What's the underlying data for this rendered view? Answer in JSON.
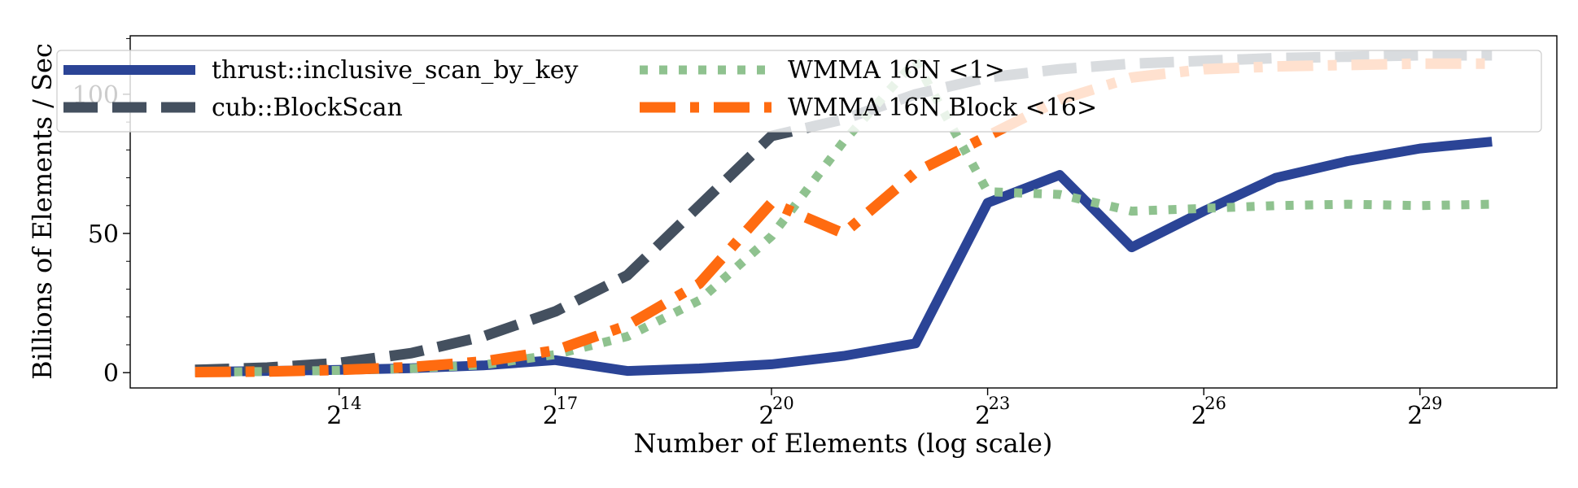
{
  "chart_data": {
    "type": "line",
    "xlabel": "Number of Elements (log scale)",
    "ylabel": "Billions of Elements / Sec",
    "x_scale": "log2",
    "x_tick_base": "2",
    "x_ticks": [
      14,
      17,
      20,
      23,
      26,
      29
    ],
    "y_ticks": [
      0,
      50,
      100
    ],
    "xlim_exponent": [
      11.1,
      30.9
    ],
    "ylim": [
      -5.5,
      121
    ],
    "x_exponents": [
      12,
      13,
      14,
      15,
      16,
      17,
      18,
      19,
      20,
      21,
      22,
      23,
      24,
      25,
      26,
      27,
      28,
      29,
      30
    ],
    "series": [
      {
        "name": "thrust::inclusive_scan_by_key",
        "color": "#2b4496",
        "dash": "solid",
        "values": [
          0.3,
          0.6,
          1.0,
          1.6,
          2.6,
          4.5,
          0.6,
          1.5,
          3.0,
          6.0,
          10.5,
          61.0,
          71.0,
          45.0,
          58.0,
          70.0,
          76.0,
          80.5,
          83.0
        ]
      },
      {
        "name": "cub::BlockScan",
        "color": "#44505f",
        "dash": "dashed",
        "values": [
          1.0,
          1.8,
          3.5,
          7.0,
          13.0,
          22.0,
          35.0,
          60.0,
          85.0,
          91.0,
          100.0,
          106.0,
          109.0,
          111.0,
          112.0,
          113.0,
          113.5,
          114.0,
          114.0
        ]
      },
      {
        "name": "WMMA 16N <1>",
        "color": "#8fc28f",
        "dash": "dotted",
        "values": [
          0.2,
          0.4,
          0.8,
          1.5,
          2.8,
          6.5,
          13.0,
          26.0,
          49.0,
          83.0,
          112.0,
          65.0,
          64.0,
          58.0,
          59.0,
          60.0,
          60.5,
          60.0,
          60.5
        ]
      },
      {
        "name": "WMMA 16N Block <16>",
        "color": "#ff6b10",
        "dash": "dashdot",
        "values": [
          0.2,
          0.4,
          1.0,
          2.0,
          4.0,
          8.0,
          17.0,
          32.0,
          61.0,
          50.0,
          72.0,
          85.0,
          98.0,
          106.0,
          109.0,
          110.0,
          110.5,
          111.0,
          111.0
        ]
      }
    ],
    "legend_position": "top",
    "legend_columns": 3,
    "grid": false
  }
}
